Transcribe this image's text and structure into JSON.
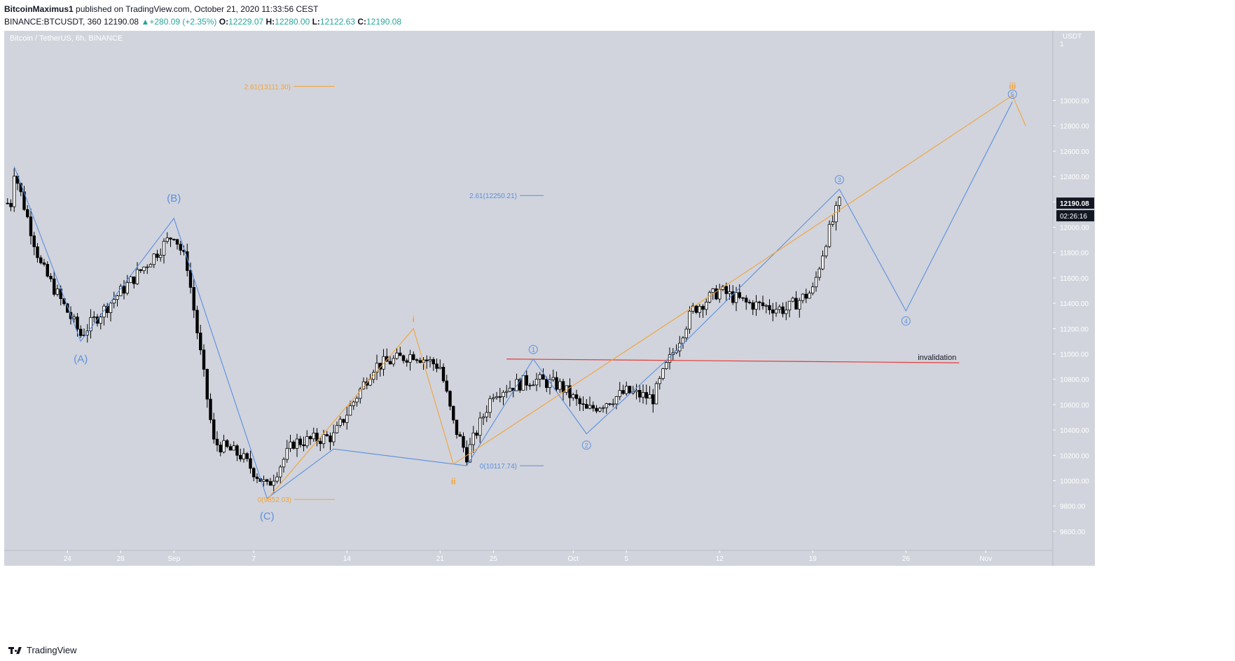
{
  "header": {
    "author": "BitcoinMaximus1",
    "published": "published on TradingView.com, October 21, 2020 11:33:56 CEST",
    "symbol": "BINANCE:BTCUSDT, 360",
    "last": "12190.08",
    "change": "+280.09 (+2.35%)",
    "o_label": "O:",
    "o_value": "12229.07",
    "h_label": "H:",
    "h_value": "12280.00",
    "l_label": "L:",
    "l_value": "12122.63",
    "c_label": "C:",
    "c_value": "12190.08"
  },
  "chart_data": {
    "type": "candlestick",
    "title": "Bitcoin / TetherUS, 6h, BINANCE",
    "currency": "USDT",
    "ylim": [
      9450,
      13550
    ],
    "y_ticks": [
      9600,
      9800,
      10000,
      10200,
      10400,
      10600,
      10800,
      11000,
      11200,
      11400,
      11600,
      11800,
      12000,
      12200,
      12400,
      12600,
      12800,
      13000
    ],
    "x_ticks": [
      "24",
      "28",
      "Sep",
      "7",
      "14",
      "21",
      "25",
      "Oct",
      "5",
      "12",
      "19",
      "26",
      "Nov"
    ],
    "last_price": "12190.08",
    "countdown": "02:26:16",
    "colors": {
      "background": "#d1d4dc",
      "wave_blue": "#5b8fe0",
      "wave_orange": "#f2a33a",
      "invalidation": "#e53935",
      "candle_up": "#ffffff",
      "candle_down": "#000000"
    },
    "wave_blue": [
      [
        "2020-08-20",
        12480
      ],
      [
        "2020-08-25",
        11100
      ],
      [
        "2020-09-01",
        12070
      ],
      [
        "2020-09-08",
        9860
      ],
      [
        "2020-09-13",
        10250
      ],
      [
        "2020-09-23",
        10117.74
      ],
      [
        "2020-09-28",
        10960
      ],
      [
        "2020-10-02",
        10370
      ],
      [
        "2020-10-08",
        10950
      ],
      [
        "2020-10-21",
        12300
      ],
      [
        "2020-10-26",
        11340
      ],
      [
        "2020-11-03",
        12990
      ]
    ],
    "wave_orange": [
      [
        "2020-09-08",
        9852.03
      ],
      [
        "2020-09-19",
        11200
      ],
      [
        "2020-09-22",
        10130
      ],
      [
        "2020-10-11",
        11440
      ],
      [
        "2020-11-03",
        13040
      ],
      [
        "2020-11-04",
        12800
      ]
    ],
    "invalidation_line": {
      "label": "invalidation",
      "from": [
        "2020-09-26",
        10960
      ],
      "to": [
        "2020-10-30",
        10930
      ]
    },
    "fib_levels": [
      {
        "label": "2.61(13111.30)",
        "value": 13111.3,
        "color": "orange"
      },
      {
        "label": "2.61(12250.21)",
        "value": 12250.21,
        "color": "blue"
      },
      {
        "label": "0(10117.74)",
        "value": 10117.74,
        "color": "blue"
      },
      {
        "label": "0(9852.03)",
        "value": 9852.03,
        "color": "orange"
      }
    ],
    "wave_labels": [
      {
        "text": "(A)",
        "date": "2020-08-25",
        "price": 10960,
        "color": "blue",
        "style": "plain"
      },
      {
        "text": "(B)",
        "date": "2020-09-01",
        "price": 12230,
        "color": "blue",
        "style": "plain"
      },
      {
        "text": "(C)",
        "date": "2020-09-08",
        "price": 9720,
        "color": "blue",
        "style": "plain"
      },
      {
        "text": "1",
        "date": "2020-09-28",
        "price": 11035,
        "color": "blue",
        "style": "circle"
      },
      {
        "text": "2",
        "date": "2020-10-02",
        "price": 10280,
        "color": "blue",
        "style": "circle"
      },
      {
        "text": "3",
        "date": "2020-10-21",
        "price": 12375,
        "color": "blue",
        "style": "circle"
      },
      {
        "text": "4",
        "date": "2020-10-26",
        "price": 11260,
        "color": "blue",
        "style": "circle"
      },
      {
        "text": "5",
        "date": "2020-11-03",
        "price": 13050,
        "color": "blue",
        "style": "circle"
      },
      {
        "text": "i",
        "date": "2020-09-19",
        "price": 11280,
        "color": "orange",
        "style": "plain"
      },
      {
        "text": "ii",
        "date": "2020-09-22",
        "price": 10000,
        "color": "orange",
        "style": "plain"
      },
      {
        "text": "iii",
        "date": "2020-11-03",
        "price": 13120,
        "color": "orange",
        "style": "plain"
      }
    ],
    "price_path": [
      [
        "2020-08-20",
        12450
      ],
      [
        "2020-08-22",
        11700
      ],
      [
        "2020-08-25",
        11150
      ],
      [
        "2020-08-27",
        11380
      ],
      [
        "2020-08-29",
        11600
      ],
      [
        "2020-09-01",
        11950
      ],
      [
        "2020-09-02",
        11700
      ],
      [
        "2020-09-04",
        10300
      ],
      [
        "2020-09-06",
        10200
      ],
      [
        "2020-09-08",
        9950
      ],
      [
        "2020-09-10",
        10300
      ],
      [
        "2020-09-13",
        10350
      ],
      [
        "2020-09-16",
        10900
      ],
      [
        "2020-09-19",
        11000
      ],
      [
        "2020-09-21",
        10900
      ],
      [
        "2020-09-22",
        10450
      ],
      [
        "2020-09-23",
        10200
      ],
      [
        "2020-09-25",
        10700
      ],
      [
        "2020-09-28",
        10800
      ],
      [
        "2020-09-30",
        10750
      ],
      [
        "2020-10-02",
        10550
      ],
      [
        "2020-10-05",
        10700
      ],
      [
        "2020-10-07",
        10650
      ],
      [
        "2020-10-08",
        10900
      ],
      [
        "2020-10-10",
        11350
      ],
      [
        "2020-10-12",
        11500
      ],
      [
        "2020-10-14",
        11400
      ],
      [
        "2020-10-17",
        11350
      ],
      [
        "2020-10-19",
        11500
      ],
      [
        "2020-10-20",
        11900
      ],
      [
        "2020-10-21",
        12190
      ]
    ]
  },
  "footer": {
    "brand": "TradingView"
  }
}
